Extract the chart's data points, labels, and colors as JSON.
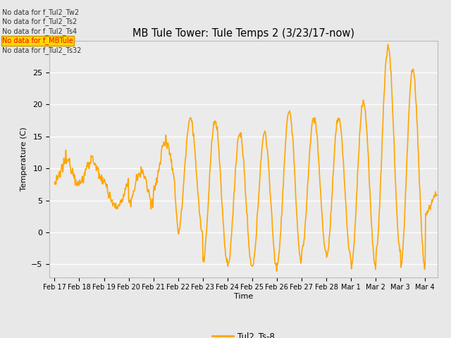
{
  "title": "MB Tule Tower: Tule Temps 2 (3/23/17-now)",
  "ylabel": "Temperature (C)",
  "xlabel": "Time",
  "line_color": "#FFA500",
  "line_width": 1.2,
  "ylim": [
    -7,
    30
  ],
  "yticks": [
    -5,
    0,
    5,
    10,
    15,
    20,
    25
  ],
  "legend_label": "Tul2_Ts-8",
  "no_data_texts": [
    "No data for f_Tul2_Tw2",
    "No data for f_Tul2_Ts2",
    "No data for f_Tul2_Ts4",
    "No data for f_MBTule",
    "No data for f_Tul2_Ts32"
  ],
  "no_data_highlight_idx": 3,
  "no_data_highlight_color": "#FFD700",
  "no_data_highlight_border": "#CC9900",
  "bg_color": "#E8E8E8",
  "plot_bg": "#EBEBEB",
  "grid_color": "#FFFFFF",
  "tick_labels": [
    "Feb 17",
    "Feb 18",
    "Feb 19",
    "Feb 20",
    "Feb 21",
    "Feb 22",
    "Feb 23",
    "Feb 24",
    "Feb 25",
    "Feb 26",
    "Feb 27",
    "Feb 28",
    "Mar 1",
    "Mar 2",
    "Mar 3",
    "Mar 4"
  ],
  "tick_positions": [
    0,
    1,
    2,
    3,
    4,
    5,
    6,
    7,
    8,
    9,
    10,
    11,
    12,
    13,
    14,
    15
  ],
  "xlim": [
    -0.2,
    15.5
  ]
}
